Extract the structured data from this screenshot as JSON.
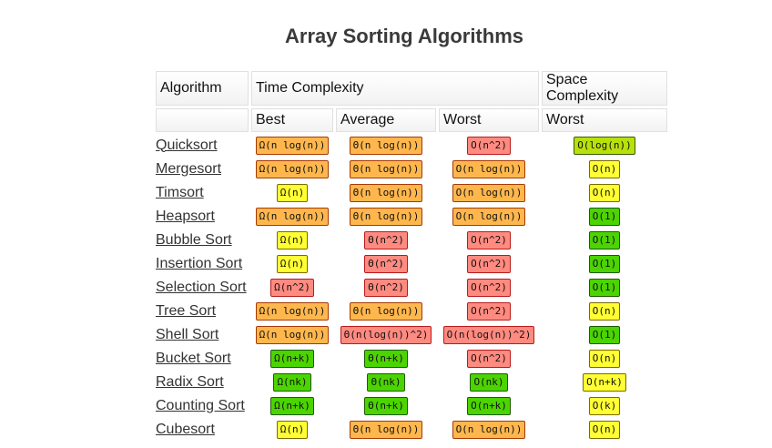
{
  "title": "Array Sorting Algorithms",
  "header": {
    "algorithm": "Algorithm",
    "time_complexity": "Time Complexity",
    "space_complexity": "Space Complexity",
    "best": "Best",
    "average": "Average",
    "worst": "Worst",
    "space_worst": "Worst"
  },
  "colors": {
    "red": "#ff8a80",
    "orange": "#ffb74d",
    "yellow": "#ffff33",
    "lime": "#b8e10a",
    "green": "#4cd400"
  },
  "rows": [
    {
      "name": "Quicksort",
      "best": {
        "text": "Ω(n log(n))",
        "color": "orange"
      },
      "average": {
        "text": "Θ(n log(n))",
        "color": "orange"
      },
      "worst": {
        "text": "O(n^2)",
        "color": "red"
      },
      "space": {
        "text": "O(log(n))",
        "color": "lime"
      }
    },
    {
      "name": "Mergesort",
      "best": {
        "text": "Ω(n log(n))",
        "color": "orange"
      },
      "average": {
        "text": "Θ(n log(n))",
        "color": "orange"
      },
      "worst": {
        "text": "O(n log(n))",
        "color": "orange"
      },
      "space": {
        "text": "O(n)",
        "color": "yellow"
      }
    },
    {
      "name": "Timsort",
      "best": {
        "text": "Ω(n)",
        "color": "yellow"
      },
      "average": {
        "text": "Θ(n log(n))",
        "color": "orange"
      },
      "worst": {
        "text": "O(n log(n))",
        "color": "orange"
      },
      "space": {
        "text": "O(n)",
        "color": "yellow"
      }
    },
    {
      "name": "Heapsort",
      "best": {
        "text": "Ω(n log(n))",
        "color": "orange"
      },
      "average": {
        "text": "Θ(n log(n))",
        "color": "orange"
      },
      "worst": {
        "text": "O(n log(n))",
        "color": "orange"
      },
      "space": {
        "text": "O(1)",
        "color": "green"
      }
    },
    {
      "name": "Bubble Sort",
      "best": {
        "text": "Ω(n)",
        "color": "yellow"
      },
      "average": {
        "text": "Θ(n^2)",
        "color": "red"
      },
      "worst": {
        "text": "O(n^2)",
        "color": "red"
      },
      "space": {
        "text": "O(1)",
        "color": "green"
      }
    },
    {
      "name": "Insertion Sort",
      "best": {
        "text": "Ω(n)",
        "color": "yellow"
      },
      "average": {
        "text": "Θ(n^2)",
        "color": "red"
      },
      "worst": {
        "text": "O(n^2)",
        "color": "red"
      },
      "space": {
        "text": "O(1)",
        "color": "green"
      }
    },
    {
      "name": "Selection Sort",
      "best": {
        "text": "Ω(n^2)",
        "color": "red"
      },
      "average": {
        "text": "Θ(n^2)",
        "color": "red"
      },
      "worst": {
        "text": "O(n^2)",
        "color": "red"
      },
      "space": {
        "text": "O(1)",
        "color": "green"
      }
    },
    {
      "name": "Tree Sort",
      "best": {
        "text": "Ω(n log(n))",
        "color": "orange"
      },
      "average": {
        "text": "Θ(n log(n))",
        "color": "orange"
      },
      "worst": {
        "text": "O(n^2)",
        "color": "red"
      },
      "space": {
        "text": "O(n)",
        "color": "yellow"
      }
    },
    {
      "name": "Shell Sort",
      "best": {
        "text": "Ω(n log(n))",
        "color": "orange"
      },
      "average": {
        "text": "Θ(n(log(n))^2)",
        "color": "red"
      },
      "worst": {
        "text": "O(n(log(n))^2)",
        "color": "red"
      },
      "space": {
        "text": "O(1)",
        "color": "green"
      }
    },
    {
      "name": "Bucket Sort",
      "best": {
        "text": "Ω(n+k)",
        "color": "green"
      },
      "average": {
        "text": "Θ(n+k)",
        "color": "green"
      },
      "worst": {
        "text": "O(n^2)",
        "color": "red"
      },
      "space": {
        "text": "O(n)",
        "color": "yellow"
      }
    },
    {
      "name": "Radix Sort",
      "best": {
        "text": "Ω(nk)",
        "color": "green"
      },
      "average": {
        "text": "Θ(nk)",
        "color": "green"
      },
      "worst": {
        "text": "O(nk)",
        "color": "green"
      },
      "space": {
        "text": "O(n+k)",
        "color": "yellow"
      }
    },
    {
      "name": "Counting Sort",
      "best": {
        "text": "Ω(n+k)",
        "color": "green"
      },
      "average": {
        "text": "Θ(n+k)",
        "color": "green"
      },
      "worst": {
        "text": "O(n+k)",
        "color": "green"
      },
      "space": {
        "text": "O(k)",
        "color": "yellow"
      }
    },
    {
      "name": "Cubesort",
      "best": {
        "text": "Ω(n)",
        "color": "yellow"
      },
      "average": {
        "text": "Θ(n log(n))",
        "color": "orange"
      },
      "worst": {
        "text": "O(n log(n))",
        "color": "orange"
      },
      "space": {
        "text": "O(n)",
        "color": "yellow"
      }
    }
  ]
}
